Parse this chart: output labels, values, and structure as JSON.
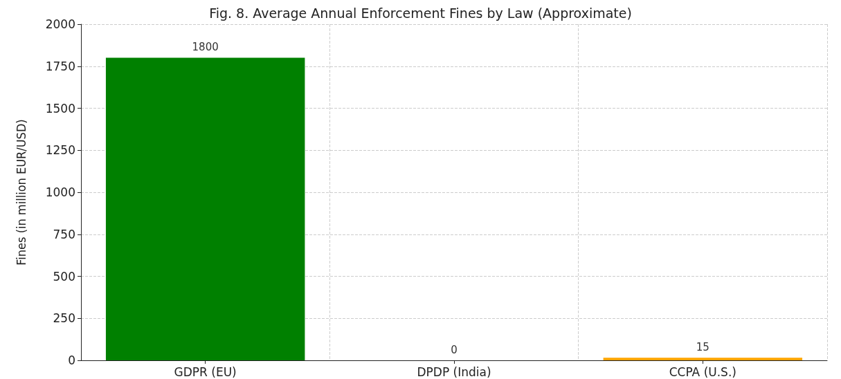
{
  "chart_data": {
    "type": "bar",
    "title": "Fig. 8. Average Annual Enforcement Fines by Law (Approximate)",
    "ylabel": "Fines (in million EUR/USD)",
    "categories": [
      "GDPR (EU)",
      "DPDP (India)",
      "CCPA (U.S.)"
    ],
    "values": [
      1800,
      0,
      15
    ],
    "colors": [
      "#008000",
      "#1f77b4",
      "#ffa500"
    ],
    "ylim": [
      0,
      2000
    ],
    "yticks": [
      0,
      250,
      500,
      750,
      1000,
      1250,
      1500,
      1750,
      2000
    ],
    "grid": true,
    "data_labels": true
  }
}
